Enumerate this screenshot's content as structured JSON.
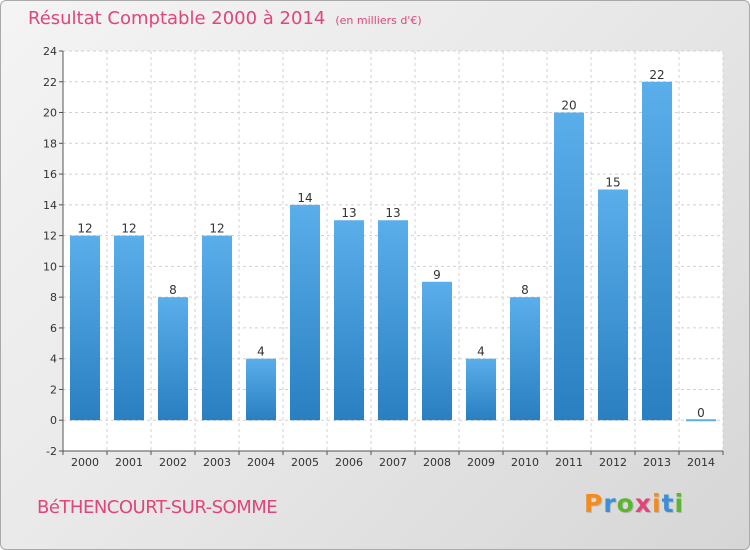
{
  "page": {
    "title": "Résultat Comptable 2000 à 2014",
    "subtitle": "(en milliers d'€)",
    "commune": "BéTHENCOURT-SUR-SOMME",
    "logo": [
      "P",
      "r",
      "o",
      "x",
      "i",
      "t",
      "i"
    ],
    "logo_colors": [
      "#f28c1e",
      "#3a8fd6",
      "#5cb531",
      "#e0457b",
      "#f28c1e",
      "#3a8fd6",
      "#5cb531"
    ]
  },
  "chart_data": {
    "type": "bar",
    "title": "Résultat Comptable 2000 à 2014",
    "subtitle": "(en milliers d'€)",
    "categories": [
      "2000",
      "2001",
      "2002",
      "2003",
      "2004",
      "2005",
      "2006",
      "2007",
      "2008",
      "2009",
      "2010",
      "2011",
      "2012",
      "2013",
      "2014"
    ],
    "values": [
      12,
      12,
      8,
      12,
      4,
      14,
      13,
      13,
      9,
      4,
      8,
      20,
      15,
      22,
      0
    ],
    "ylim": [
      -2,
      24
    ],
    "yticks": [
      -2,
      0,
      2,
      4,
      6,
      8,
      10,
      12,
      14,
      16,
      18,
      20,
      22,
      24
    ],
    "grid": true,
    "colors": {
      "bar_top": "#5aaeea",
      "bar_bottom": "#2a7fc1",
      "grid": "#d0d0d0",
      "axis": "#555555",
      "text": "#333333"
    }
  }
}
